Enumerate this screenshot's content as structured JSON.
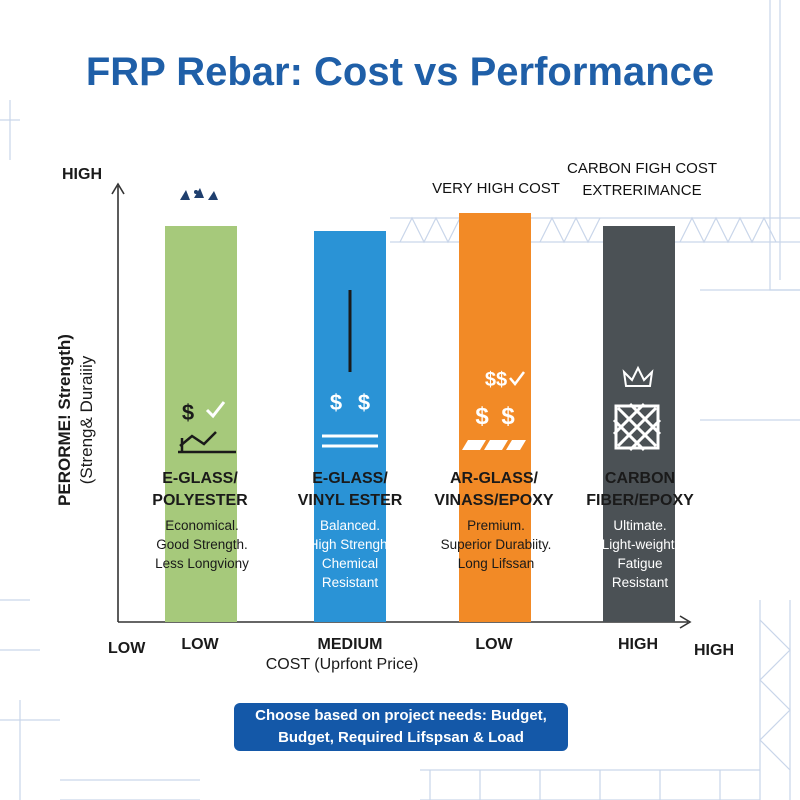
{
  "chart_data": {
    "type": "bar",
    "title": "FRP Rebar: Cost vs Performance",
    "ylabel": [
      "PERORME! Strength)",
      "(Streng& Duraiiiy"
    ],
    "y_high_label": "HIGH",
    "x_low_label": "LOW",
    "x_high_label": "HIGH",
    "xlabel": "COST (Uprfont Price)",
    "ylim": [
      0,
      100
    ],
    "categories": [
      "E-GLASS/ POLYESTER",
      "E-GLASS/ VINYL ESTER",
      "AR-GLASS/ VINASS/EPOXY",
      "CARBON FIBER/EPOXY"
    ],
    "values": [
      86,
      85,
      89,
      86
    ],
    "colors": [
      "#a6c97b",
      "#2a93d6",
      "#f28a26",
      "#4b5155"
    ],
    "bars": [
      {
        "name_lines": [
          "E-GLASS/",
          "POLYESTER"
        ],
        "desc_lines": [
          "Economical.",
          "Good Strength.",
          "Less Longviony"
        ],
        "cost": "LOW",
        "top_label": "",
        "icons": [
          "feathers-icon",
          "dollar-check-icon",
          "trend-icon"
        ],
        "icon_text": "$ ✓"
      },
      {
        "name_lines": [
          "E-GLASS/",
          "VINYL ESTER"
        ],
        "desc_lines": [
          "Balanced.",
          "High Strengh.",
          "Chemical",
          "Resistant"
        ],
        "cost": "MEDIUM",
        "top_label": "",
        "icons": [
          "line-icon",
          "double-dollar-icon",
          "equals-icon"
        ],
        "icon_text": "$ $"
      },
      {
        "name_lines": [
          "AR-GLASS/",
          "VINASS/EPOXY"
        ],
        "desc_lines": [
          "Premium.",
          "Superior Durabiity.",
          "Long Lifssan"
        ],
        "cost": "LOW",
        "top_label": "VERY HIGH COST",
        "icons": [
          "dollar-check-icon",
          "double-dollar-icon",
          "stripes-icon"
        ],
        "icon_text_1": "$$✓",
        "icon_text_2": "$ $"
      },
      {
        "name_lines": [
          "CARBON",
          "FIBER/EPOXY"
        ],
        "desc_lines": [
          "Ultimate.",
          "Light-weight.",
          "Fatigue",
          "Resistant"
        ],
        "cost": "HIGH",
        "top_label_lines": [
          "CARBON FIGH COST",
          "EXTRERIMANCE"
        ],
        "icons": [
          "crown-icon",
          "weave-icon"
        ]
      }
    ]
  },
  "banner": {
    "line1": "Choose based on project needs: Budget,",
    "line2": "Budget, Required Lifspsan & Load"
  }
}
